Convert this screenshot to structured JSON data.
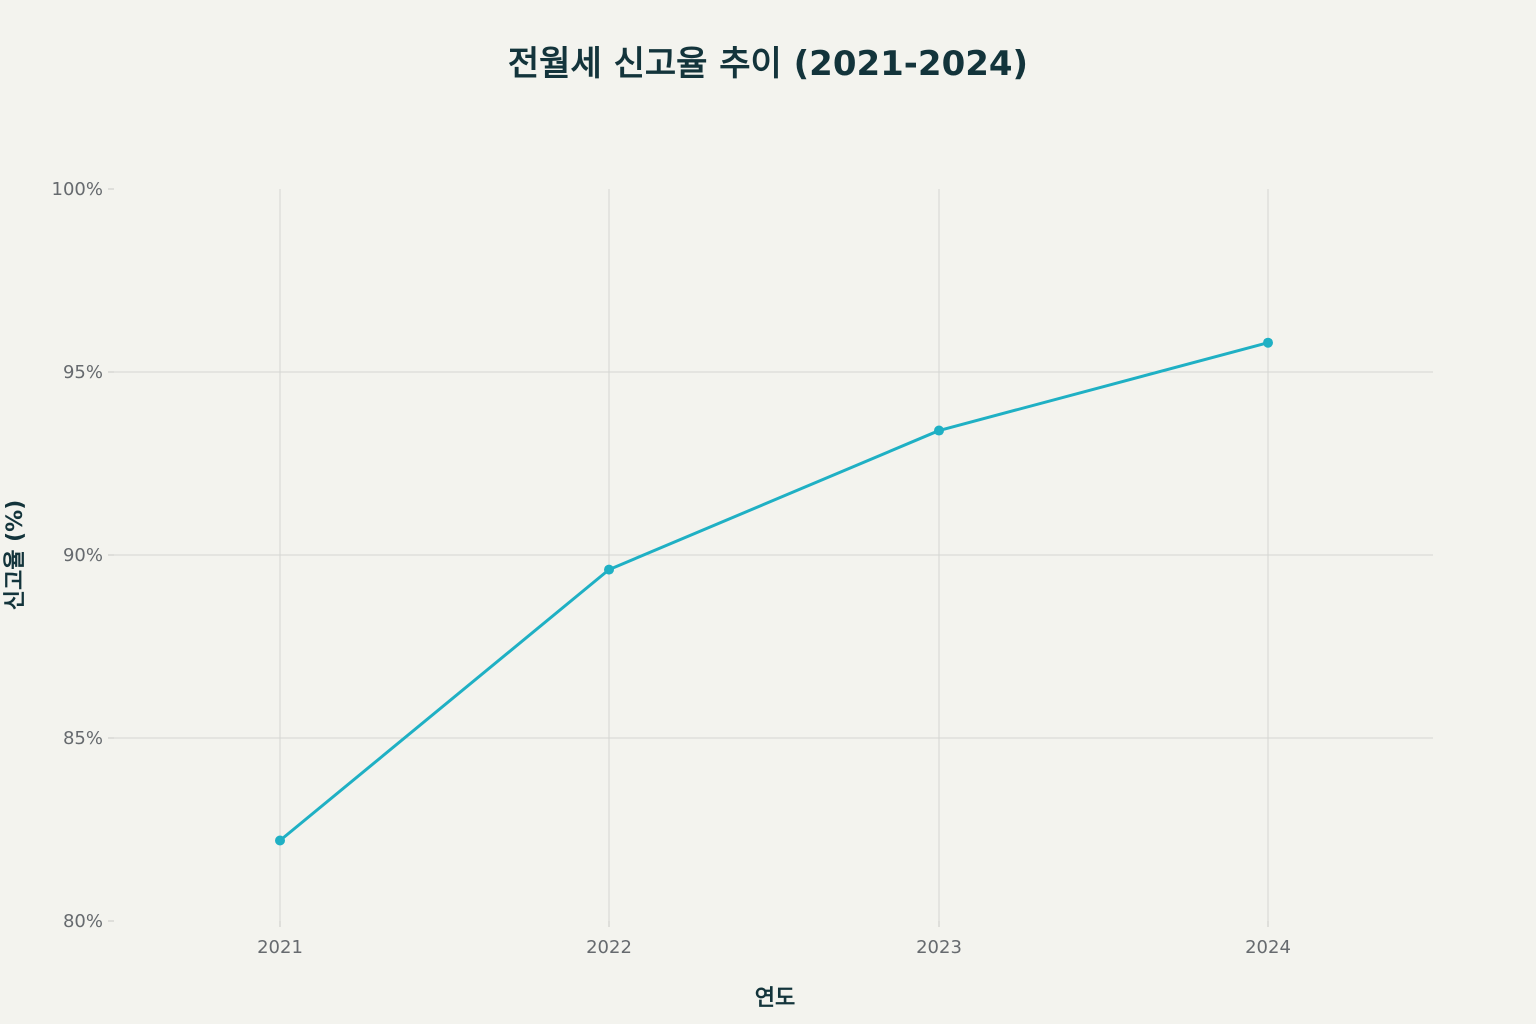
{
  "chart_data": {
    "type": "line",
    "title": "전월세 신고율 추이 (2021-2024)",
    "xlabel": "연도",
    "ylabel": "신고율 (%)",
    "categories": [
      "2021",
      "2022",
      "2023",
      "2024"
    ],
    "series": [
      {
        "values": [
          82.2,
          89.6,
          93.4,
          95.8
        ]
      }
    ],
    "ylim": [
      80,
      100
    ],
    "yticks": [
      80,
      85,
      90,
      95,
      100
    ],
    "ytick_labels": [
      "80%",
      "85%",
      "90%",
      "95%",
      "100%"
    ],
    "grid": true,
    "legend": "none",
    "colors": {
      "line": "#1fb0c4",
      "background": "#f3f3ee",
      "text": "#13343b"
    }
  }
}
